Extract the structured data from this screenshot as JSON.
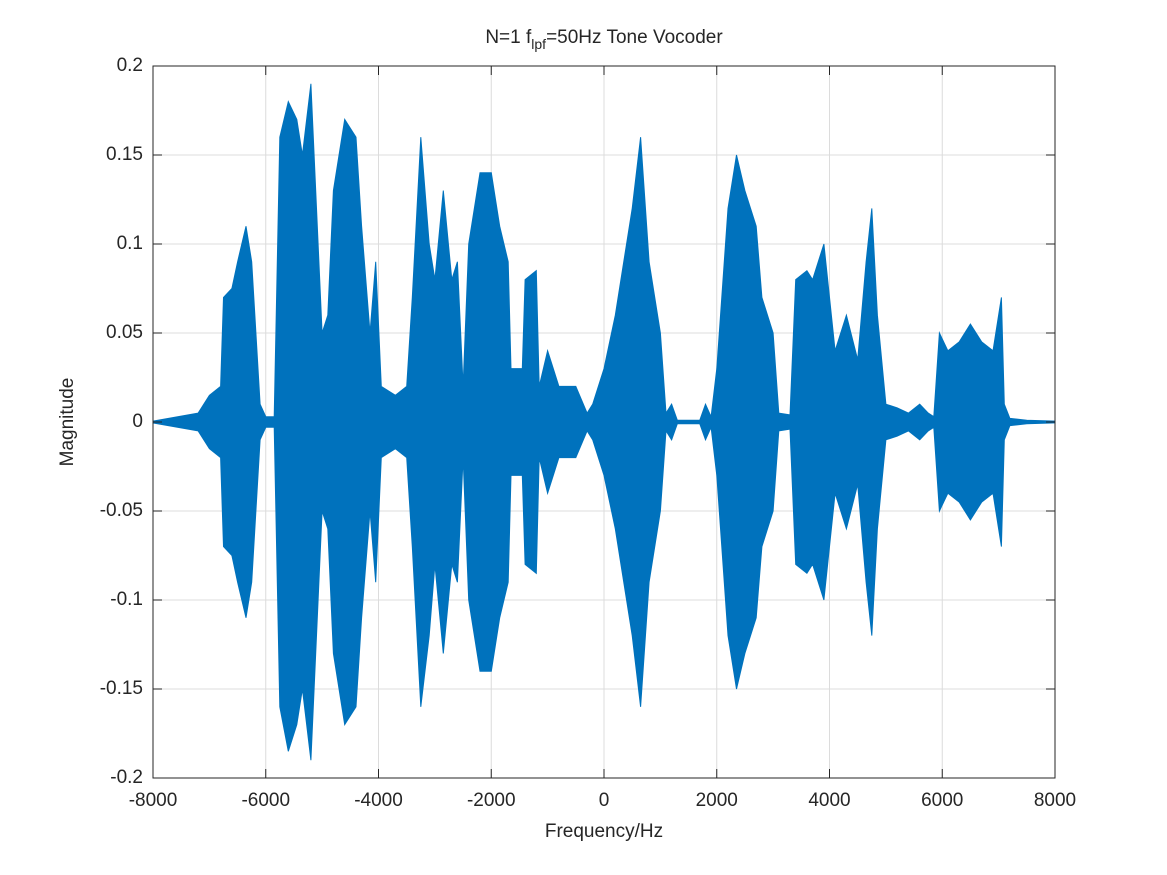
{
  "chart_data": {
    "type": "area",
    "title": {
      "text": "N=1 f",
      "subscript": "lpf",
      "rest": "=50Hz Tone Vocoder"
    },
    "xlabel": "Frequency/Hz",
    "ylabel": "Magnitude",
    "xlim": [
      -8000,
      8000
    ],
    "xticks": [
      -8000,
      -6000,
      -4000,
      -2000,
      0,
      2000,
      4000,
      6000,
      8000
    ],
    "ylim": [
      -0.2,
      0.2
    ],
    "yticks": [
      -0.2,
      -0.15,
      -0.1,
      -0.05,
      0,
      0.05,
      0.1,
      0.15,
      0.2
    ],
    "grid": true,
    "color": "#0072bd",
    "x": [
      -8000,
      -7200,
      -7000,
      -6800,
      -6750,
      -6600,
      -6500,
      -6350,
      -6250,
      -6100,
      -6000,
      -5850,
      -5750,
      -5600,
      -5450,
      -5350,
      -5200,
      -5100,
      -5000,
      -4900,
      -4800,
      -4600,
      -4400,
      -4300,
      -4150,
      -4050,
      -3950,
      -3700,
      -3500,
      -3400,
      -3250,
      -3100,
      -3000,
      -2850,
      -2700,
      -2600,
      -2500,
      -2400,
      -2200,
      -2000,
      -1850,
      -1700,
      -1650,
      -1450,
      -1400,
      -1200,
      -1150,
      -1000,
      -900,
      -800,
      -500,
      -300,
      -200,
      0,
      200,
      500,
      650,
      800,
      1000,
      1100,
      1200,
      1300,
      1700,
      1800,
      1900,
      2000,
      2200,
      2350,
      2500,
      2700,
      2800,
      3000,
      3100,
      3300,
      3400,
      3600,
      3700,
      3900,
      4100,
      4300,
      4500,
      4650,
      4750,
      4850,
      5000,
      5200,
      5400,
      5600,
      5750,
      5850,
      5950,
      6100,
      6300,
      6500,
      6700,
      6900,
      7050,
      7100,
      7200,
      7500,
      8000
    ],
    "values": [
      0.0005,
      0.005,
      0.015,
      0.02,
      0.07,
      0.075,
      0.09,
      0.11,
      0.09,
      0.01,
      0.003,
      0.003,
      0.16,
      0.18,
      0.17,
      0.15,
      0.19,
      0.12,
      0.05,
      0.06,
      0.13,
      0.17,
      0.16,
      0.11,
      0.05,
      0.09,
      0.02,
      0.015,
      0.02,
      0.07,
      0.16,
      0.1,
      0.08,
      0.13,
      0.08,
      0.09,
      0.02,
      0.1,
      0.14,
      0.14,
      0.11,
      0.09,
      0.03,
      0.03,
      0.08,
      0.085,
      0.02,
      0.04,
      0.03,
      0.02,
      0.02,
      0.005,
      0.01,
      0.03,
      0.06,
      0.12,
      0.16,
      0.09,
      0.05,
      0.005,
      0.01,
      0.001,
      0.001,
      0.01,
      0.003,
      0.03,
      0.12,
      0.15,
      0.13,
      0.11,
      0.07,
      0.05,
      0.005,
      0.004,
      0.08,
      0.085,
      0.08,
      0.1,
      0.04,
      0.06,
      0.035,
      0.09,
      0.12,
      0.06,
      0.01,
      0.008,
      0.005,
      0.01,
      0.005,
      0.003,
      0.05,
      0.04,
      0.045,
      0.055,
      0.045,
      0.04,
      0.07,
      0.01,
      0.002,
      0.001,
      0.0005
    ],
    "min_values": [
      -0.0005,
      -0.005,
      -0.015,
      -0.02,
      -0.07,
      -0.075,
      -0.09,
      -0.11,
      -0.09,
      -0.01,
      -0.003,
      -0.003,
      -0.16,
      -0.185,
      -0.17,
      -0.15,
      -0.19,
      -0.12,
      -0.05,
      -0.06,
      -0.13,
      -0.17,
      -0.16,
      -0.11,
      -0.05,
      -0.09,
      -0.02,
      -0.015,
      -0.02,
      -0.07,
      -0.16,
      -0.12,
      -0.08,
      -0.13,
      -0.08,
      -0.09,
      -0.02,
      -0.1,
      -0.14,
      -0.14,
      -0.11,
      -0.09,
      -0.03,
      -0.03,
      -0.08,
      -0.085,
      -0.02,
      -0.04,
      -0.03,
      -0.02,
      -0.02,
      -0.005,
      -0.01,
      -0.03,
      -0.06,
      -0.12,
      -0.16,
      -0.09,
      -0.05,
      -0.005,
      -0.01,
      -0.001,
      -0.001,
      -0.01,
      -0.003,
      -0.03,
      -0.12,
      -0.15,
      -0.13,
      -0.11,
      -0.07,
      -0.05,
      -0.005,
      -0.004,
      -0.08,
      -0.085,
      -0.08,
      -0.1,
      -0.04,
      -0.06,
      -0.035,
      -0.09,
      -0.12,
      -0.06,
      -0.01,
      -0.008,
      -0.005,
      -0.01,
      -0.005,
      -0.003,
      -0.05,
      -0.04,
      -0.045,
      -0.055,
      -0.045,
      -0.04,
      -0.07,
      -0.01,
      -0.002,
      -0.001,
      -0.0005
    ]
  }
}
